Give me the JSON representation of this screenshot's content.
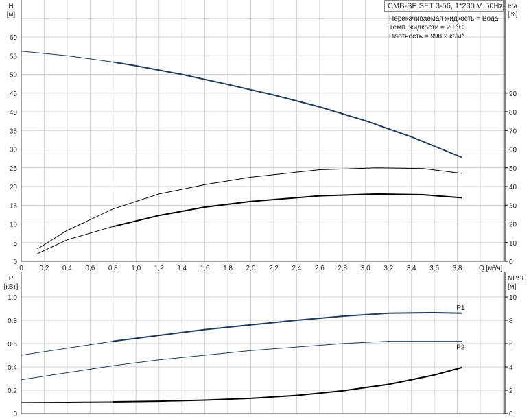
{
  "title": "CMB-SP SET 3-56, 1*230 V, 50Hz",
  "info": [
    "Перекачиваемая жидкость = Вода",
    "Темп. жидкости = 20 °C",
    "Плотность = 998.2 кг/м³"
  ],
  "colors": {
    "curve_blue": "#1f3a5f",
    "curve_black": "#000000",
    "grid": "#d0d0d0"
  },
  "chart_data": [
    {
      "type": "line",
      "ylabel": "H",
      "yunit": "[м]",
      "y2label": "eta",
      "y2unit": "[%]",
      "xlabel": "Q [м³/ч]",
      "xlim": [
        0,
        4.2
      ],
      "ylim": [
        0,
        65
      ],
      "y2lim": [
        0,
        130
      ],
      "xticks": [
        "0",
        "0,2",
        "0,4",
        "0,6",
        "0,8",
        "1,0",
        "1,2",
        "1,4",
        "1,6",
        "1,8",
        "2,0",
        "2,2",
        "2,4",
        "2,6",
        "2,8",
        "3,0",
        "3,2",
        "3,4",
        "3,6",
        "3,8"
      ],
      "yticks": [
        0,
        5,
        10,
        15,
        20,
        25,
        30,
        35,
        40,
        45,
        50,
        55,
        60
      ],
      "y2ticks": [
        0,
        10,
        20,
        30,
        40,
        50,
        60,
        70,
        80,
        90
      ],
      "grid": true,
      "series": [
        {
          "id": "H",
          "axis": "left",
          "color": "#1f3a5f",
          "thick_from": 0.8,
          "x": [
            0,
            0.4,
            0.8,
            1.0,
            1.4,
            1.8,
            2.2,
            2.6,
            3.0,
            3.4,
            3.84
          ],
          "y": [
            56.2,
            55.0,
            53.3,
            52.3,
            50.0,
            47.3,
            44.5,
            41.3,
            37.6,
            33.3,
            27.8
          ]
        },
        {
          "id": "eta_upper",
          "axis": "right",
          "color": "#000000",
          "thick_from": 99,
          "x": [
            0.14,
            0.4,
            0.8,
            1.2,
            1.6,
            2.0,
            2.6,
            3.1,
            3.5,
            3.84
          ],
          "y": [
            6.6,
            16.5,
            28,
            36,
            41,
            45,
            49,
            50,
            49.6,
            47
          ]
        },
        {
          "id": "eta_lower",
          "axis": "right",
          "color": "#000000",
          "thick_from": 0.8,
          "x": [
            0.14,
            0.4,
            0.8,
            1.2,
            1.6,
            2.0,
            2.6,
            3.1,
            3.5,
            3.84
          ],
          "y": [
            4,
            11.5,
            18.6,
            24.5,
            29,
            32,
            35,
            36,
            35.6,
            34
          ]
        }
      ]
    },
    {
      "type": "line",
      "ylabel": "P",
      "yunit": "[кВт]",
      "y2label": "NPSH",
      "y2unit": "[м]",
      "xlim": [
        0,
        4.2
      ],
      "ylim": [
        0,
        1.0
      ],
      "y2lim": [
        0,
        10
      ],
      "yticks": [
        "0",
        "0.2",
        "0.4",
        "0.6",
        "0.8",
        "1.0"
      ],
      "y2ticks": [
        0,
        2,
        4,
        6,
        8,
        10
      ],
      "grid": true,
      "series": [
        {
          "id": "P1",
          "name": "P1",
          "axis": "left",
          "color": "#1f3a5f",
          "thick_from": 0.8,
          "x": [
            0,
            0.4,
            0.8,
            1.2,
            1.6,
            2.0,
            2.4,
            2.8,
            3.2,
            3.6,
            3.84
          ],
          "y": [
            0.5,
            0.56,
            0.62,
            0.67,
            0.72,
            0.76,
            0.8,
            0.835,
            0.86,
            0.865,
            0.86
          ]
        },
        {
          "id": "P2",
          "name": "P2",
          "axis": "left",
          "color": "#1f3a5f",
          "thick_from": 99,
          "x": [
            0,
            0.4,
            0.8,
            1.2,
            1.6,
            2.0,
            2.4,
            2.8,
            3.2,
            3.6,
            3.84
          ],
          "y": [
            0.29,
            0.35,
            0.41,
            0.46,
            0.5,
            0.54,
            0.57,
            0.6,
            0.62,
            0.62,
            0.62
          ]
        },
        {
          "id": "NPSH",
          "axis": "right",
          "color": "#000000",
          "thick_from": 0.8,
          "x": [
            0,
            0.4,
            0.8,
            1.2,
            1.6,
            2.0,
            2.4,
            2.8,
            3.2,
            3.6,
            3.84
          ],
          "y": [
            0.95,
            0.97,
            1.0,
            1.05,
            1.15,
            1.3,
            1.55,
            1.95,
            2.5,
            3.3,
            3.95
          ]
        }
      ]
    }
  ]
}
